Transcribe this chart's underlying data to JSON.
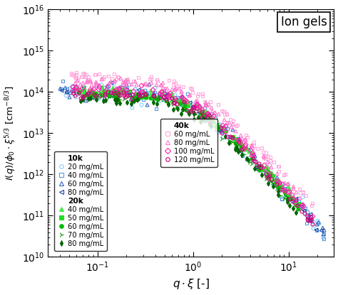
{
  "xlabel": "$q \\cdot \\xi$ [-]",
  "ylabel": "$I(q) / \\phi_0 \\cdot \\xi^{5/3}$ [cm$^{-8/3}$]",
  "xlim": [
    0.03,
    30
  ],
  "ylim": [
    10000000000.0,
    1e+16
  ],
  "ion_gels_label": "Ion gels",
  "series_10k": [
    {
      "label": "20 mg/mL",
      "color": "#88ccff",
      "marker": "o",
      "I0": 100000000000000.0,
      "Ilow": 500000000000000.0,
      "n": 70,
      "qmin": 0.04,
      "qmax": 25,
      "noise": 0.3
    },
    {
      "label": "40 mg/mL",
      "color": "#5599dd",
      "marker": "s",
      "I0": 100000000000000.0,
      "Ilow": 200000000000000.0,
      "n": 65,
      "qmin": 0.04,
      "qmax": 25,
      "noise": 0.25
    },
    {
      "label": "60 mg/mL",
      "color": "#3366bb",
      "marker": "^",
      "I0": 100000000000000.0,
      "Ilow": 100000000000000.0,
      "n": 60,
      "qmin": 0.04,
      "qmax": 25,
      "noise": 0.22
    },
    {
      "label": "80 mg/mL",
      "color": "#1144aa",
      "marker": "<",
      "I0": 100000000000000.0,
      "Ilow": 50000000000000.0,
      "n": 55,
      "qmin": 0.04,
      "qmax": 24,
      "noise": 0.2
    }
  ],
  "series_20k": [
    {
      "label": "40 mg/mL",
      "color": "#44ee44",
      "marker": "^",
      "I0": 120000000000000.0,
      "n": 55,
      "qmin": 0.06,
      "qmax": 13,
      "noise": 0.1
    },
    {
      "label": "50 mg/mL",
      "color": "#22dd22",
      "marker": "s",
      "I0": 100000000000000.0,
      "n": 55,
      "qmin": 0.06,
      "qmax": 13,
      "noise": 0.09
    },
    {
      "label": "60 mg/mL",
      "color": "#00bb00",
      "marker": "o",
      "I0": 85000000000000.0,
      "n": 55,
      "qmin": 0.06,
      "qmax": 13,
      "noise": 0.09
    },
    {
      "label": "70 mg/mL",
      "color": "#009900",
      "marker": "4",
      "I0": 75000000000000.0,
      "n": 55,
      "qmin": 0.06,
      "qmax": 13,
      "noise": 0.09
    },
    {
      "label": "80 mg/mL",
      "color": "#006600",
      "marker": "d",
      "I0": 65000000000000.0,
      "n": 55,
      "qmin": 0.06,
      "qmax": 13,
      "noise": 0.09
    }
  ],
  "series_40k": [
    {
      "label": "60 mg/mL",
      "color": "#ffaadd",
      "marker": "s",
      "I0": 250000000000000.0,
      "n": 90,
      "qmin": 0.05,
      "qmax": 18,
      "noise": 0.11
    },
    {
      "label": "80 mg/mL",
      "color": "#ff77cc",
      "marker": "^",
      "I0": 180000000000000.0,
      "n": 90,
      "qmin": 0.05,
      "qmax": 18,
      "noise": 0.1
    },
    {
      "label": "100 mg/mL",
      "color": "#ff22aa",
      "marker": "D",
      "I0": 120000000000000.0,
      "n": 90,
      "qmin": 0.05,
      "qmax": 18,
      "noise": 0.1
    },
    {
      "label": "120 mg/mL",
      "color": "#cc0077",
      "marker": "o",
      "I0": 90000000000000.0,
      "n": 90,
      "qmin": 0.05,
      "qmax": 18,
      "noise": 0.1
    }
  ],
  "seed": 42
}
